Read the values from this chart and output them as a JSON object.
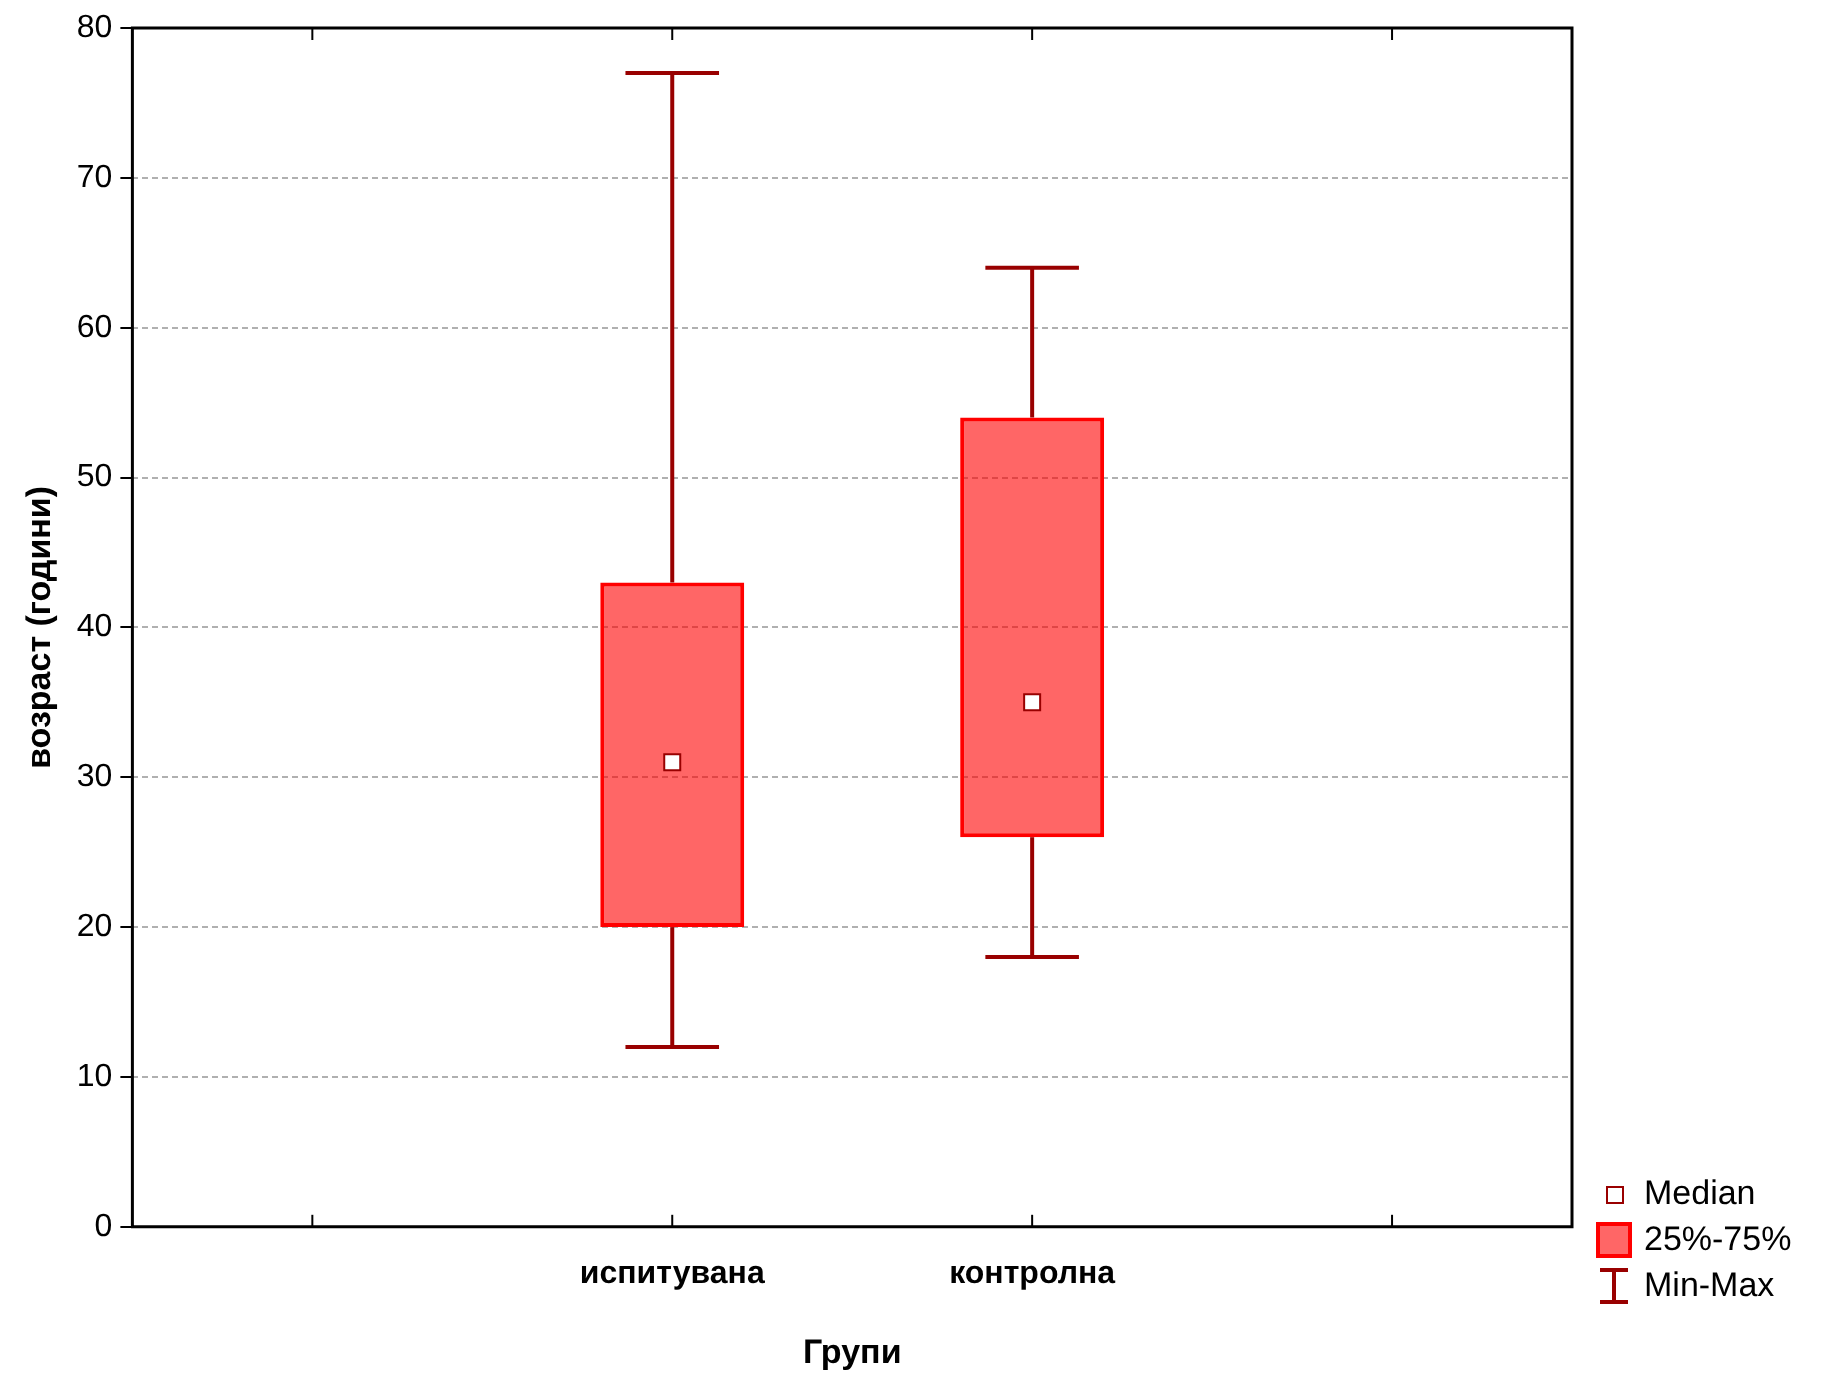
{
  "chart_data": {
    "type": "box",
    "xlabel": "Групи",
    "ylabel": "возраст (години)",
    "categories": [
      null,
      "испитувана",
      "контролна",
      null
    ],
    "color": "#ff0000",
    "boxes": [
      null,
      {
        "low": 12,
        "q1": 20,
        "median": 31,
        "q3": 43,
        "high": 77
      },
      {
        "low": 18,
        "q1": 26,
        "median": 35,
        "q3": 54,
        "high": 64
      },
      null
    ],
    "ylim": [
      0,
      80
    ],
    "yticks": [
      0,
      10,
      20,
      30,
      40,
      50,
      60,
      70,
      80
    ],
    "grid": "y",
    "annotations": [
      "Median",
      "25%-75%",
      "Min-Max"
    ]
  }
}
